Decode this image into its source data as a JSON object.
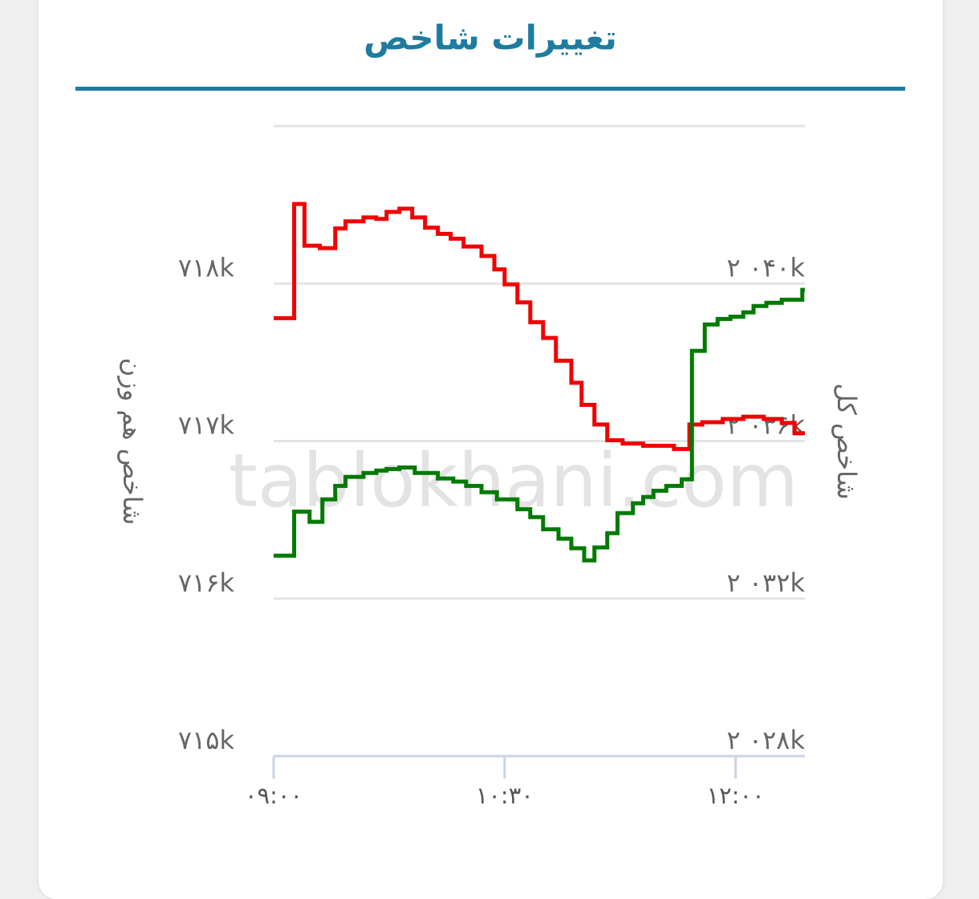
{
  "chart_data": {
    "type": "line",
    "drawstyle": "steps-post",
    "title": "تغییرات شاخص",
    "watermark": "tablokhani.com",
    "ylabel": "شاخص هم وزن",
    "y2label": "شاخص کل",
    "grid": true,
    "xlim": [
      540,
      747
    ],
    "xticks": [
      {
        "value": 540,
        "label": "۰۹:۰۰"
      },
      {
        "value": 630,
        "label": "۱۰:۳۰"
      },
      {
        "value": 720,
        "label": "۱۲:۰۰"
      }
    ],
    "ylim": [
      715000,
      719000
    ],
    "yticks": [
      {
        "value": 718000,
        "label": "۷۱۸k"
      },
      {
        "value": 717000,
        "label": "۷۱۷k"
      },
      {
        "value": 716000,
        "label": "۷۱۶k"
      },
      {
        "value": 715000,
        "label": "۷۱۵k"
      }
    ],
    "y2lim": [
      2028000,
      2044000
    ],
    "y2ticks": [
      {
        "value": 2040000,
        "label": "۲ ۰۴۰k"
      },
      {
        "value": 2036000,
        "label": "۲ ۰۳۶k"
      },
      {
        "value": 2032000,
        "label": "۲ ۰۳۲k"
      },
      {
        "value": 2028000,
        "label": "۲ ۰۲۸k"
      }
    ],
    "series": [
      {
        "color": "#f20000",
        "x": [
          540,
          548,
          552,
          558,
          564,
          568,
          575,
          580,
          584,
          589,
          594,
          599,
          604,
          609,
          614,
          621,
          626,
          630,
          635,
          640,
          645,
          650,
          656,
          660,
          665,
          670,
          676,
          684,
          696,
          702,
          707,
          715,
          723,
          731,
          738,
          743
        ],
        "values": [
          717780,
          718505,
          718240,
          718225,
          718350,
          718395,
          718420,
          718410,
          718455,
          718475,
          718420,
          718355,
          718315,
          718285,
          718235,
          718175,
          718090,
          717995,
          717880,
          717755,
          717655,
          717510,
          717370,
          717230,
          717105,
          717005,
          716985,
          716970,
          716950,
          717105,
          717120,
          717140,
          717155,
          717140,
          717115,
          717050
        ]
      },
      {
        "color": "#007a00",
        "axis": "y2",
        "x": [
          540,
          548,
          554,
          559,
          564,
          568,
          575,
          580,
          584,
          589,
          595,
          604,
          610,
          615,
          621,
          627,
          635,
          640,
          645,
          651,
          656,
          661,
          665,
          670,
          674,
          680,
          684,
          688,
          693,
          699,
          703,
          708,
          713,
          718,
          723,
          727,
          732,
          738,
          746
        ],
        "values": [
          2033090,
          2034210,
          2033950,
          2034520,
          2034860,
          2035090,
          2035190,
          2035250,
          2035290,
          2035330,
          2035190,
          2035050,
          2034970,
          2034860,
          2034700,
          2034520,
          2034270,
          2034070,
          2033760,
          2033520,
          2033280,
          2032970,
          2033300,
          2033660,
          2034170,
          2034420,
          2034580,
          2034740,
          2034860,
          2035030,
          2038290,
          2038960,
          2039100,
          2039160,
          2039270,
          2039430,
          2039510,
          2039590,
          2039840
        ]
      }
    ]
  }
}
